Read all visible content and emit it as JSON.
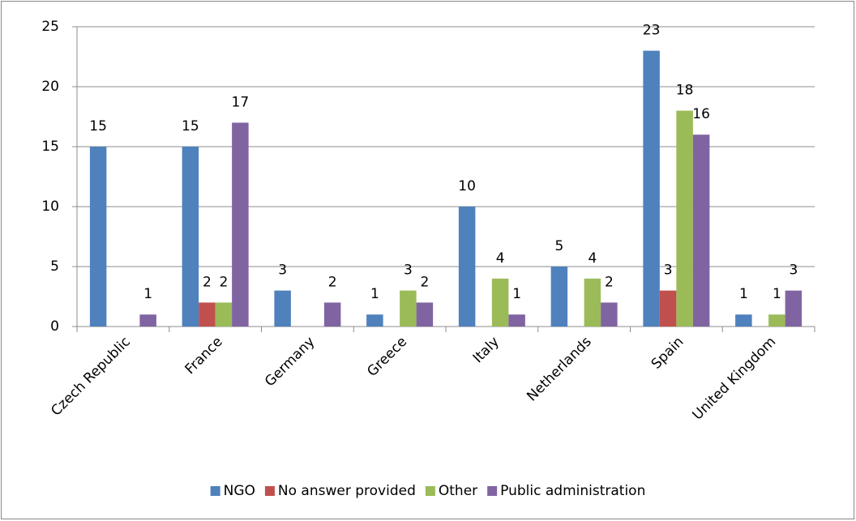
{
  "chart_data": {
    "type": "bar",
    "categories": [
      "Czech Republic",
      "France",
      "Germany",
      "Greece",
      "Italy",
      "Netherlands",
      "Spain",
      "United Kingdom"
    ],
    "series": [
      {
        "name": "NGO",
        "color": "#4f81bd",
        "values": [
          15,
          15,
          3,
          1,
          10,
          5,
          23,
          1
        ]
      },
      {
        "name": "No answer provided",
        "color": "#c0504d",
        "values": [
          null,
          2,
          null,
          null,
          null,
          null,
          3,
          null
        ]
      },
      {
        "name": "Other",
        "color": "#9bbb59",
        "values": [
          null,
          2,
          null,
          3,
          4,
          4,
          18,
          1
        ]
      },
      {
        "name": "Public administration",
        "color": "#8064a2",
        "values": [
          1,
          17,
          2,
          2,
          1,
          2,
          16,
          3
        ]
      }
    ],
    "ylim": [
      0,
      25
    ],
    "yticks": [
      0,
      5,
      10,
      15,
      20,
      25
    ],
    "grid": true,
    "legend": "bottom"
  }
}
